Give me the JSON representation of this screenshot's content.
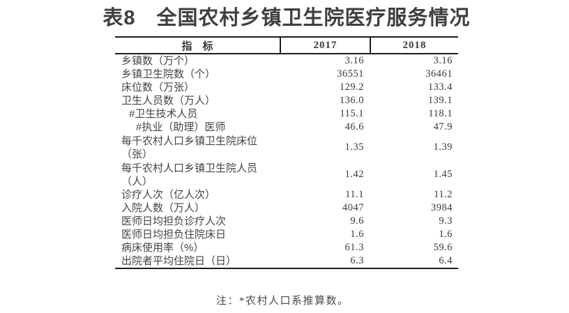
{
  "title": "表8　全国农村乡镇卫生院医疗服务情况",
  "table": {
    "columns": [
      "指　标",
      "2017",
      "2018"
    ],
    "rows": [
      {
        "label": "乡镇数（万个）",
        "v2017": "3.16",
        "v2018": "3.16",
        "indent": 0,
        "tall": false
      },
      {
        "label": "乡镇卫生院数（个）",
        "v2017": "36551",
        "v2018": "36461",
        "indent": 0,
        "tall": false
      },
      {
        "label": "床位数（万张）",
        "v2017": "129.2",
        "v2018": "133.4",
        "indent": 0,
        "tall": false
      },
      {
        "label": "卫生人员数（万人）",
        "v2017": "136.0",
        "v2018": "139.1",
        "indent": 0,
        "tall": false
      },
      {
        "label": "#卫生技术人员",
        "v2017": "115.1",
        "v2018": "118.1",
        "indent": 1,
        "tall": false
      },
      {
        "label": "#执业（助理）医师",
        "v2017": "46.6",
        "v2018": "47.9",
        "indent": 2,
        "tall": false
      },
      {
        "label": "每千农村人口乡镇卫生院床位\n（张）",
        "v2017": "1.35",
        "v2018": "1.39",
        "indent": 0,
        "tall": true
      },
      {
        "label": "每千农村人口乡镇卫生院人员\n（人）",
        "v2017": "1.42",
        "v2018": "1.45",
        "indent": 0,
        "tall": true
      },
      {
        "label": "诊疗人次（亿人次）",
        "v2017": "11.1",
        "v2018": "11.2",
        "indent": 0,
        "tall": false
      },
      {
        "label": "入院人数（万人）",
        "v2017": "4047",
        "v2018": "3984",
        "indent": 0,
        "tall": false
      },
      {
        "label": "医师日均担负诊疗人次",
        "v2017": "9.6",
        "v2018": "9.3",
        "indent": 0,
        "tall": false
      },
      {
        "label": "医师日均担负住院床日",
        "v2017": "1.6",
        "v2018": "1.6",
        "indent": 0,
        "tall": false
      },
      {
        "label": "病床使用率（%）",
        "v2017": "61.3",
        "v2018": "59.6",
        "indent": 0,
        "tall": false
      },
      {
        "label": "出院者平均住院日（日）",
        "v2017": "6.3",
        "v2018": "6.4",
        "indent": 0,
        "tall": false
      }
    ]
  },
  "note": "注：*农村人口系推算数。"
}
